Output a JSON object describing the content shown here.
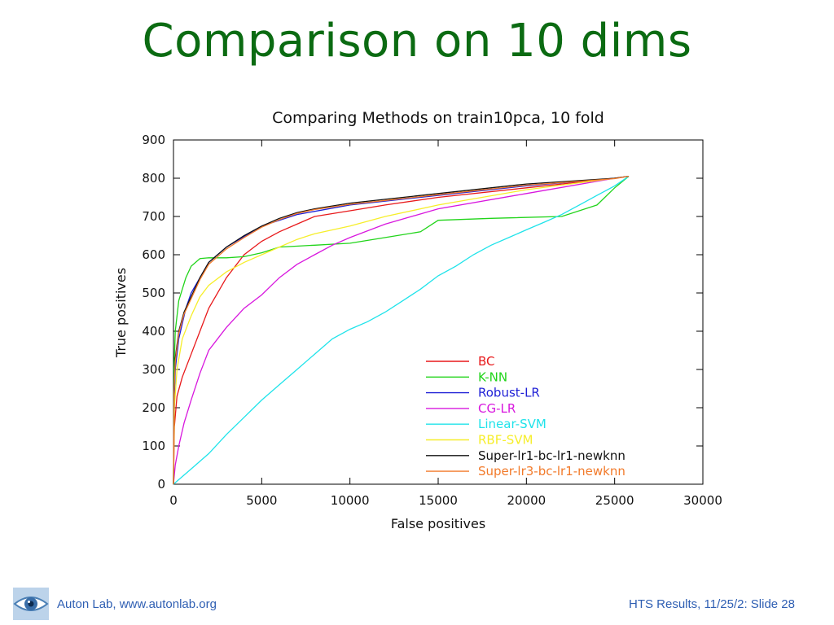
{
  "slide": {
    "title": "Comparison on 10 dims",
    "footer_left": "Auton Lab, www.autonlab.org",
    "footer_right": "HTS Results, 11/25/2: Slide 28",
    "logo_icon": "eye-logo-icon",
    "title_color": "#0b6b12",
    "footer_color": "#2f5fb3"
  },
  "chart_data": {
    "type": "line",
    "title": "Comparing Methods on train10pca, 10 fold",
    "xlabel": "False positives",
    "ylabel": "True positives",
    "xlim": [
      0,
      30000
    ],
    "ylim": [
      0,
      900
    ],
    "xticks": [
      0,
      5000,
      10000,
      15000,
      20000,
      25000,
      30000
    ],
    "yticks": [
      0,
      100,
      200,
      300,
      400,
      500,
      600,
      700,
      800,
      900
    ],
    "grid": false,
    "legend_position": "lower-right",
    "series": [
      {
        "name": "BC",
        "color": "#e8191b",
        "points": [
          [
            0,
            0
          ],
          [
            50,
            150
          ],
          [
            200,
            230
          ],
          [
            500,
            280
          ],
          [
            1000,
            340
          ],
          [
            1500,
            400
          ],
          [
            2000,
            460
          ],
          [
            3000,
            540
          ],
          [
            4000,
            600
          ],
          [
            5000,
            635
          ],
          [
            6000,
            660
          ],
          [
            7000,
            680
          ],
          [
            8000,
            700
          ],
          [
            10000,
            715
          ],
          [
            12000,
            730
          ],
          [
            15000,
            750
          ],
          [
            20000,
            775
          ],
          [
            25000,
            800
          ],
          [
            25800,
            805
          ]
        ]
      },
      {
        "name": "K-NN",
        "color": "#21d41a",
        "points": [
          [
            0,
            0
          ],
          [
            30,
            300
          ],
          [
            100,
            400
          ],
          [
            300,
            480
          ],
          [
            700,
            540
          ],
          [
            1000,
            570
          ],
          [
            1500,
            590
          ],
          [
            2000,
            592
          ],
          [
            3000,
            592
          ],
          [
            4000,
            595
          ],
          [
            5000,
            605
          ],
          [
            6000,
            620
          ],
          [
            8000,
            625
          ],
          [
            10000,
            630
          ],
          [
            12000,
            645
          ],
          [
            14000,
            660
          ],
          [
            15000,
            690
          ],
          [
            18000,
            695
          ],
          [
            22000,
            700
          ],
          [
            24000,
            730
          ],
          [
            25000,
            775
          ],
          [
            25800,
            805
          ]
        ]
      },
      {
        "name": "Robust-LR",
        "color": "#1e1fd6",
        "points": [
          [
            0,
            0
          ],
          [
            30,
            200
          ],
          [
            100,
            300
          ],
          [
            300,
            380
          ],
          [
            700,
            460
          ],
          [
            1000,
            500
          ],
          [
            2000,
            580
          ],
          [
            3000,
            620
          ],
          [
            5000,
            675
          ],
          [
            7000,
            705
          ],
          [
            10000,
            730
          ],
          [
            15000,
            755
          ],
          [
            20000,
            780
          ],
          [
            25000,
            800
          ],
          [
            25800,
            805
          ]
        ]
      },
      {
        "name": "CG-LR",
        "color": "#d817de",
        "points": [
          [
            0,
            0
          ],
          [
            100,
            50
          ],
          [
            300,
            100
          ],
          [
            600,
            160
          ],
          [
            1000,
            220
          ],
          [
            1500,
            290
          ],
          [
            2000,
            350
          ],
          [
            3000,
            410
          ],
          [
            4000,
            460
          ],
          [
            5000,
            495
          ],
          [
            6000,
            540
          ],
          [
            7000,
            575
          ],
          [
            8000,
            600
          ],
          [
            9000,
            625
          ],
          [
            10000,
            645
          ],
          [
            12000,
            680
          ],
          [
            15000,
            720
          ],
          [
            20000,
            760
          ],
          [
            25000,
            800
          ],
          [
            25800,
            805
          ]
        ]
      },
      {
        "name": "Linear-SVM",
        "color": "#1fe3ea",
        "points": [
          [
            0,
            0
          ],
          [
            1000,
            40
          ],
          [
            2000,
            80
          ],
          [
            3000,
            130
          ],
          [
            4000,
            175
          ],
          [
            5000,
            220
          ],
          [
            6000,
            260
          ],
          [
            7000,
            300
          ],
          [
            8000,
            340
          ],
          [
            9000,
            380
          ],
          [
            10000,
            405
          ],
          [
            11000,
            425
          ],
          [
            12000,
            450
          ],
          [
            13000,
            480
          ],
          [
            14000,
            510
          ],
          [
            15000,
            545
          ],
          [
            16000,
            570
          ],
          [
            17000,
            600
          ],
          [
            18000,
            625
          ],
          [
            19000,
            645
          ],
          [
            20000,
            665
          ],
          [
            21000,
            685
          ],
          [
            22000,
            705
          ],
          [
            23000,
            730
          ],
          [
            24000,
            755
          ],
          [
            25000,
            780
          ],
          [
            25800,
            805
          ]
        ]
      },
      {
        "name": "RBF-SVM",
        "color": "#f6ee2a",
        "points": [
          [
            0,
            0
          ],
          [
            50,
            200
          ],
          [
            200,
            300
          ],
          [
            500,
            380
          ],
          [
            1000,
            440
          ],
          [
            1500,
            490
          ],
          [
            2000,
            520
          ],
          [
            3000,
            555
          ],
          [
            4000,
            580
          ],
          [
            5000,
            600
          ],
          [
            6000,
            620
          ],
          [
            7000,
            640
          ],
          [
            8000,
            655
          ],
          [
            10000,
            675
          ],
          [
            12000,
            700
          ],
          [
            15000,
            730
          ],
          [
            20000,
            770
          ],
          [
            25000,
            800
          ],
          [
            25800,
            805
          ]
        ]
      },
      {
        "name": "Super-lr1-bc-lr1-newknn",
        "color": "#111111",
        "points": [
          [
            0,
            0
          ],
          [
            30,
            250
          ],
          [
            100,
            330
          ],
          [
            300,
            400
          ],
          [
            600,
            450
          ],
          [
            1000,
            490
          ],
          [
            1500,
            540
          ],
          [
            2000,
            580
          ],
          [
            3000,
            620
          ],
          [
            4000,
            650
          ],
          [
            5000,
            675
          ],
          [
            6000,
            695
          ],
          [
            7000,
            710
          ],
          [
            8000,
            720
          ],
          [
            10000,
            735
          ],
          [
            12000,
            745
          ],
          [
            15000,
            760
          ],
          [
            20000,
            785
          ],
          [
            25000,
            800
          ],
          [
            25800,
            805
          ]
        ]
      },
      {
        "name": "Super-lr3-bc-lr1-newknn",
        "color": "#f27a2a",
        "points": [
          [
            0,
            0
          ],
          [
            30,
            240
          ],
          [
            100,
            320
          ],
          [
            300,
            395
          ],
          [
            600,
            445
          ],
          [
            1000,
            485
          ],
          [
            1500,
            535
          ],
          [
            2000,
            575
          ],
          [
            3000,
            615
          ],
          [
            4000,
            645
          ],
          [
            5000,
            672
          ],
          [
            6000,
            692
          ],
          [
            7000,
            708
          ],
          [
            8000,
            718
          ],
          [
            10000,
            732
          ],
          [
            12000,
            742
          ],
          [
            15000,
            757
          ],
          [
            20000,
            782
          ],
          [
            25000,
            799
          ],
          [
            25800,
            805
          ]
        ]
      }
    ]
  }
}
